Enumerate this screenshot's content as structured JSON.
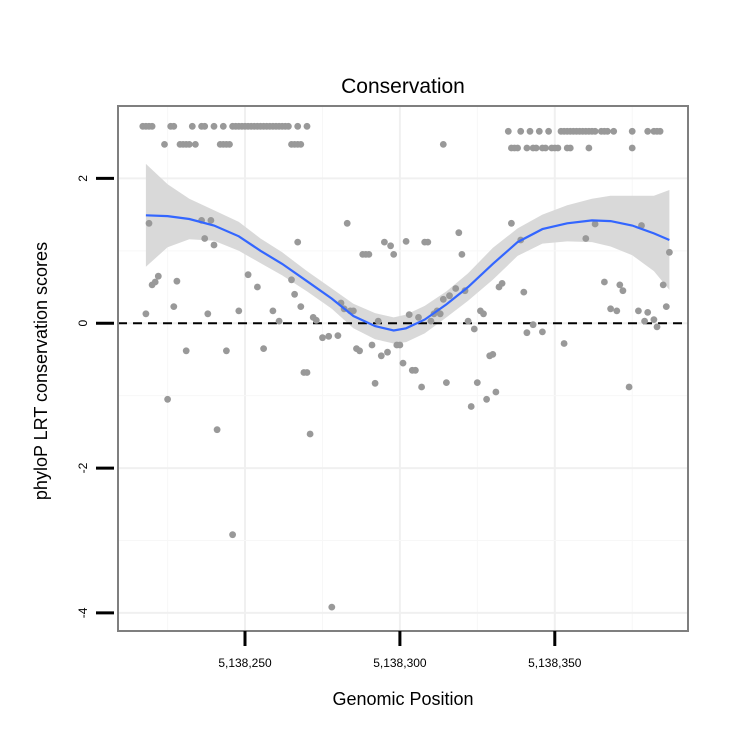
{
  "chart_data": {
    "type": "scatter",
    "title": "Conservation",
    "xlabel": "Genomic Position",
    "ylabel": "phyloP LRT conservation scores",
    "xlim": [
      5138209,
      5138393
    ],
    "ylim": [
      -4.25,
      3.0
    ],
    "x_ticks": [
      {
        "value": 5138250,
        "label": "5,138,250"
      },
      {
        "value": 5138300,
        "label": "5,138,300"
      },
      {
        "value": 5138350,
        "label": "5,138,350"
      }
    ],
    "y_ticks": [
      {
        "value": -4,
        "label": "-4"
      },
      {
        "value": -2,
        "label": "-2"
      },
      {
        "value": 0,
        "label": "0"
      },
      {
        "value": 2,
        "label": "2"
      }
    ],
    "reference_line": {
      "y": 0,
      "style": "dashed",
      "color": "#000000"
    },
    "point_color": "#999999",
    "smooth_color": "#3366FF",
    "ribbon_color": "#D9D9D9",
    "panel_border_color": "#7F7F7F",
    "points": [
      [
        5138217,
        2.72
      ],
      [
        5138218,
        2.72
      ],
      [
        5138219,
        2.72
      ],
      [
        5138220,
        2.72
      ],
      [
        5138226,
        2.72
      ],
      [
        5138227,
        2.72
      ],
      [
        5138233,
        2.72
      ],
      [
        5138236,
        2.72
      ],
      [
        5138237,
        2.72
      ],
      [
        5138240,
        2.72
      ],
      [
        5138243,
        2.72
      ],
      [
        5138246,
        2.72
      ],
      [
        5138247,
        2.72
      ],
      [
        5138248,
        2.72
      ],
      [
        5138249,
        2.72
      ],
      [
        5138250,
        2.72
      ],
      [
        5138251,
        2.72
      ],
      [
        5138252,
        2.72
      ],
      [
        5138253,
        2.72
      ],
      [
        5138254,
        2.72
      ],
      [
        5138255,
        2.72
      ],
      [
        5138256,
        2.72
      ],
      [
        5138257,
        2.72
      ],
      [
        5138258,
        2.72
      ],
      [
        5138259,
        2.72
      ],
      [
        5138260,
        2.72
      ],
      [
        5138261,
        2.72
      ],
      [
        5138262,
        2.72
      ],
      [
        5138263,
        2.72
      ],
      [
        5138264,
        2.72
      ],
      [
        5138267,
        2.72
      ],
      [
        5138270,
        2.72
      ],
      [
        5138224,
        2.47
      ],
      [
        5138229,
        2.47
      ],
      [
        5138230,
        2.47
      ],
      [
        5138231,
        2.47
      ],
      [
        5138232,
        2.47
      ],
      [
        5138234,
        2.47
      ],
      [
        5138242,
        2.47
      ],
      [
        5138243,
        2.47
      ],
      [
        5138244,
        2.47
      ],
      [
        5138245,
        2.47
      ],
      [
        5138265,
        2.47
      ],
      [
        5138266,
        2.47
      ],
      [
        5138267,
        2.47
      ],
      [
        5138268,
        2.47
      ],
      [
        5138314,
        2.47
      ],
      [
        5138335,
        2.65
      ],
      [
        5138339,
        2.65
      ],
      [
        5138342,
        2.65
      ],
      [
        5138345,
        2.65
      ],
      [
        5138348,
        2.65
      ],
      [
        5138352,
        2.65
      ],
      [
        5138353,
        2.65
      ],
      [
        5138354,
        2.65
      ],
      [
        5138355,
        2.65
      ],
      [
        5138356,
        2.65
      ],
      [
        5138357,
        2.65
      ],
      [
        5138358,
        2.65
      ],
      [
        5138359,
        2.65
      ],
      [
        5138360,
        2.65
      ],
      [
        5138361,
        2.65
      ],
      [
        5138362,
        2.65
      ],
      [
        5138363,
        2.65
      ],
      [
        5138365,
        2.65
      ],
      [
        5138366,
        2.65
      ],
      [
        5138367,
        2.65
      ],
      [
        5138369,
        2.65
      ],
      [
        5138375,
        2.65
      ],
      [
        5138380,
        2.65
      ],
      [
        5138382,
        2.65
      ],
      [
        5138383,
        2.65
      ],
      [
        5138384,
        2.65
      ],
      [
        5138336,
        2.42
      ],
      [
        5138337,
        2.42
      ],
      [
        5138338,
        2.42
      ],
      [
        5138341,
        2.42
      ],
      [
        5138343,
        2.42
      ],
      [
        5138344,
        2.42
      ],
      [
        5138346,
        2.42
      ],
      [
        5138347,
        2.42
      ],
      [
        5138349,
        2.42
      ],
      [
        5138350,
        2.42
      ],
      [
        5138351,
        2.42
      ],
      [
        5138354,
        2.42
      ],
      [
        5138355,
        2.42
      ],
      [
        5138361,
        2.42
      ],
      [
        5138375,
        2.42
      ],
      [
        5138219,
        1.38
      ],
      [
        5138220,
        0.53
      ],
      [
        5138221,
        0.57
      ],
      [
        5138222,
        0.65
      ],
      [
        5138218,
        0.13
      ],
      [
        5138225,
        -1.05
      ],
      [
        5138227,
        0.23
      ],
      [
        5138228,
        0.58
      ],
      [
        5138231,
        -0.38
      ],
      [
        5138236,
        1.42
      ],
      [
        5138237,
        1.17
      ],
      [
        5138238,
        0.13
      ],
      [
        5138239,
        1.42
      ],
      [
        5138240,
        1.08
      ],
      [
        5138241,
        -1.47
      ],
      [
        5138244,
        -0.38
      ],
      [
        5138246,
        -2.92
      ],
      [
        5138248,
        0.17
      ],
      [
        5138251,
        0.67
      ],
      [
        5138254,
        0.5
      ],
      [
        5138256,
        -0.35
      ],
      [
        5138259,
        0.17
      ],
      [
        5138261,
        0.03
      ],
      [
        5138265,
        0.6
      ],
      [
        5138266,
        0.4
      ],
      [
        5138267,
        1.12
      ],
      [
        5138268,
        0.23
      ],
      [
        5138269,
        -0.68
      ],
      [
        5138270,
        -0.68
      ],
      [
        5138271,
        -1.53
      ],
      [
        5138272,
        0.08
      ],
      [
        5138273,
        0.04
      ],
      [
        5138275,
        -0.2
      ],
      [
        5138277,
        -0.18
      ],
      [
        5138278,
        -3.92
      ],
      [
        5138280,
        -0.17
      ],
      [
        5138281,
        0.28
      ],
      [
        5138282,
        0.2
      ],
      [
        5138283,
        1.38
      ],
      [
        5138284,
        0.17
      ],
      [
        5138285,
        0.17
      ],
      [
        5138286,
        -0.35
      ],
      [
        5138287,
        -0.38
      ],
      [
        5138288,
        0.95
      ],
      [
        5138289,
        0.95
      ],
      [
        5138290,
        0.95
      ],
      [
        5138291,
        -0.3
      ],
      [
        5138292,
        -0.83
      ],
      [
        5138293,
        0.03
      ],
      [
        5138294,
        -0.45
      ],
      [
        5138295,
        1.12
      ],
      [
        5138296,
        -0.4
      ],
      [
        5138297,
        1.07
      ],
      [
        5138298,
        0.95
      ],
      [
        5138299,
        -0.3
      ],
      [
        5138300,
        -0.3
      ],
      [
        5138301,
        -0.55
      ],
      [
        5138302,
        1.13
      ],
      [
        5138303,
        0.12
      ],
      [
        5138304,
        -0.65
      ],
      [
        5138305,
        -0.65
      ],
      [
        5138306,
        0.08
      ],
      [
        5138307,
        -0.88
      ],
      [
        5138308,
        1.12
      ],
      [
        5138309,
        1.12
      ],
      [
        5138310,
        0.03
      ],
      [
        5138311,
        0.13
      ],
      [
        5138312,
        0.17
      ],
      [
        5138313,
        0.13
      ],
      [
        5138314,
        0.33
      ],
      [
        5138315,
        -0.82
      ],
      [
        5138316,
        0.38
      ],
      [
        5138318,
        0.48
      ],
      [
        5138319,
        1.25
      ],
      [
        5138320,
        0.95
      ],
      [
        5138321,
        0.45
      ],
      [
        5138322,
        0.03
      ],
      [
        5138323,
        -1.15
      ],
      [
        5138324,
        -0.08
      ],
      [
        5138325,
        -0.82
      ],
      [
        5138326,
        0.17
      ],
      [
        5138327,
        0.13
      ],
      [
        5138328,
        -1.05
      ],
      [
        5138329,
        -0.45
      ],
      [
        5138330,
        -0.43
      ],
      [
        5138331,
        -0.95
      ],
      [
        5138332,
        0.5
      ],
      [
        5138333,
        0.55
      ],
      [
        5138336,
        1.38
      ],
      [
        5138339,
        1.15
      ],
      [
        5138340,
        0.43
      ],
      [
        5138341,
        -0.13
      ],
      [
        5138343,
        -0.02
      ],
      [
        5138346,
        -0.12
      ],
      [
        5138353,
        -0.28
      ],
      [
        5138360,
        1.17
      ],
      [
        5138363,
        1.37
      ],
      [
        5138366,
        0.57
      ],
      [
        5138368,
        0.2
      ],
      [
        5138370,
        0.17
      ],
      [
        5138371,
        0.53
      ],
      [
        5138372,
        0.45
      ],
      [
        5138374,
        -0.88
      ],
      [
        5138377,
        0.17
      ],
      [
        5138378,
        1.35
      ],
      [
        5138379,
        0.03
      ],
      [
        5138380,
        0.15
      ],
      [
        5138382,
        0.05
      ],
      [
        5138383,
        -0.05
      ],
      [
        5138385,
        0.53
      ],
      [
        5138386,
        0.23
      ],
      [
        5138387,
        0.98
      ]
    ],
    "smooth": {
      "x": [
        5138218,
        5138225,
        5138232,
        5138240,
        5138248,
        5138255,
        5138262,
        5138270,
        5138278,
        5138285,
        5138292,
        5138298,
        5138302,
        5138308,
        5138315,
        5138322,
        5138330,
        5138338,
        5138346,
        5138354,
        5138362,
        5138368,
        5138375,
        5138382,
        5138387
      ],
      "y": [
        1.49,
        1.48,
        1.44,
        1.35,
        1.2,
        1.0,
        0.82,
        0.58,
        0.34,
        0.1,
        -0.04,
        -0.1,
        -0.07,
        0.05,
        0.26,
        0.5,
        0.82,
        1.12,
        1.3,
        1.38,
        1.42,
        1.41,
        1.35,
        1.24,
        1.15
      ],
      "lower": [
        0.78,
        1.05,
        1.16,
        1.14,
        1.0,
        0.83,
        0.66,
        0.44,
        0.2,
        -0.07,
        -0.22,
        -0.28,
        -0.26,
        -0.14,
        0.08,
        0.31,
        0.6,
        0.93,
        1.1,
        1.13,
        1.12,
        1.06,
        0.94,
        0.72,
        0.46
      ],
      "upper": [
        2.2,
        1.92,
        1.72,
        1.56,
        1.4,
        1.17,
        0.98,
        0.72,
        0.48,
        0.27,
        0.14,
        0.08,
        0.12,
        0.24,
        0.44,
        0.69,
        1.04,
        1.31,
        1.5,
        1.63,
        1.72,
        1.76,
        1.76,
        1.76,
        1.84
      ]
    }
  }
}
